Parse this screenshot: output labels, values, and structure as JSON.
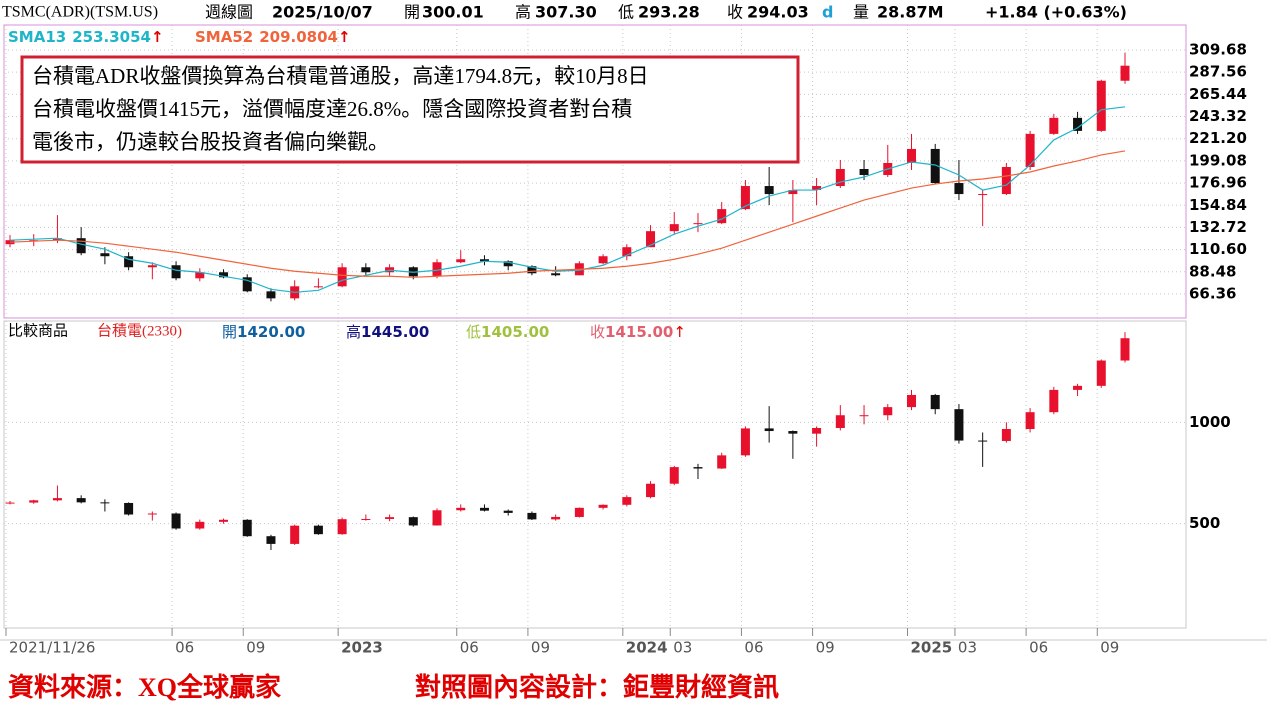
{
  "header": {
    "symbol": "TSMC(ADR)(TSM.US)",
    "period": "週線圖",
    "date": "2025/10/07",
    "open_label": "開",
    "open": "300.01",
    "high_label": "高",
    "high": "307.30",
    "low_label": "低",
    "low": "293.28",
    "close_label": "收",
    "close": "294.03",
    "flag": "d",
    "volume_label": "量",
    "volume": "28.87M",
    "change": "+1.84 (+0.63%)"
  },
  "annotation": [
    "台積電ADR收盤價換算為台積電普通股，高達1794.8元，較10月8日",
    "台積電收盤價1415元，溢價幅度達26.8%。隱含國際投資者對台積",
    "電後市，仍遠較台股投資者偏向樂觀。"
  ],
  "footer": {
    "source": "資料來源：XQ全球贏家",
    "design": "對照圖內容設計：鉅豐財經資訊"
  },
  "chart_data": [
    {
      "type": "candlestick",
      "up_color": "#e8112d",
      "down_color": "#111111",
      "open": [
        116,
        120,
        120,
        122,
        107,
        104,
        93,
        95,
        82,
        88,
        83,
        69,
        62,
        74,
        74,
        93,
        88,
        93,
        84,
        98,
        101,
        99,
        94,
        87,
        85,
        97,
        104,
        113,
        129,
        136,
        137,
        151,
        174,
        166,
        170,
        174,
        191,
        185,
        197,
        211,
        177,
        166,
        166,
        193,
        226,
        242,
        229,
        279
      ],
      "high": [
        125,
        126,
        145,
        133,
        113,
        108,
        98,
        99,
        92,
        91,
        86,
        72,
        80,
        82,
        97,
        97,
        96,
        94,
        101,
        110,
        105,
        100,
        95,
        94,
        99,
        106,
        116,
        135,
        148,
        147,
        158,
        180,
        193,
        180,
        182,
        200,
        200,
        215,
        226,
        216,
        200,
        170,
        197,
        229,
        246,
        248,
        280,
        307
      ],
      "low": [
        113,
        114,
        117,
        105,
        96,
        90,
        81,
        80,
        79,
        82,
        68,
        59,
        60,
        72,
        73,
        85,
        84,
        81,
        82,
        97,
        95,
        90,
        85,
        84,
        85,
        96,
        100,
        113,
        126,
        128,
        136,
        150,
        155,
        138,
        155,
        172,
        180,
        183,
        190,
        176,
        160,
        134,
        165,
        190,
        225,
        226,
        228,
        276
      ],
      "close": [
        120,
        120,
        122,
        107,
        104,
        93,
        95,
        82,
        88,
        83,
        69,
        62,
        74,
        74,
        93,
        88,
        93,
        84,
        98,
        101,
        99,
        94,
        87,
        85,
        97,
        104,
        113,
        129,
        136,
        137,
        151,
        174,
        166,
        170,
        174,
        191,
        185,
        197,
        211,
        177,
        166,
        166,
        193,
        226,
        242,
        229,
        279,
        294
      ],
      "lines": [
        {
          "name": "SMA13",
          "value": 253.3054,
          "trend": "↑",
          "color": "#1fb5c9",
          "values": [
            120,
            121,
            122,
            116,
            111,
            101,
            97,
            90,
            88,
            84,
            80,
            71,
            68,
            70,
            80,
            85,
            90,
            88,
            90,
            94,
            99,
            98,
            93,
            89,
            90,
            95,
            105,
            115,
            126,
            134,
            141,
            154,
            164,
            170,
            170,
            178,
            183,
            191,
            198,
            195,
            185,
            170,
            175,
            195,
            220,
            232,
            250,
            253
          ]
        },
        {
          "name": "SMA52",
          "value": 209.0804,
          "trend": "↑",
          "color": "#f0643c",
          "values": [
            118,
            119,
            120,
            119,
            117,
            114,
            111,
            108,
            104,
            100,
            96,
            92,
            89,
            87,
            85,
            84,
            84,
            83,
            84,
            85,
            86,
            87,
            89,
            90,
            91,
            92,
            94,
            97,
            101,
            106,
            112,
            120,
            128,
            136,
            144,
            152,
            160,
            166,
            172,
            176,
            179,
            181,
            184,
            188,
            194,
            199,
            205,
            209
          ]
        }
      ],
      "ylim": [
        42.4,
        334.6
      ],
      "yticks": [
        309.68,
        287.56,
        265.44,
        243.32,
        {
          "value": 221.2,
          "label": "221.20"
        },
        199.08,
        176.96,
        154.84,
        132.72,
        {
          "value": 110.6,
          "label": "110.60"
        },
        88.48,
        66.36
      ]
    },
    {
      "type": "candlestick",
      "up_color": "#e8112d",
      "down_color": "#111111",
      "compare_label": "比較商品",
      "name": "台積電(2330)",
      "quote": {
        "open_label": "開",
        "open": "1420.00",
        "high_label": "高",
        "high": "1445.00",
        "low_label": "低",
        "low": "1405.00",
        "close_label": "收",
        "close": "1415.00",
        "trend": "↑"
      },
      "categories": [
        "2021/11/26",
        null,
        null,
        null,
        null,
        null,
        null,
        "06",
        null,
        null,
        "09",
        null,
        null,
        null,
        "2023",
        null,
        null,
        null,
        null,
        "06",
        null,
        null,
        "09",
        null,
        null,
        null,
        "2024",
        null,
        "03",
        null,
        null,
        "06",
        null,
        null,
        "09",
        null,
        null,
        null,
        "2025",
        null,
        "03",
        null,
        null,
        "06",
        null,
        null,
        "09",
        null
      ],
      "open": [
        600,
        604,
        615,
        626,
        605,
        602,
        545,
        550,
        476,
        509,
        519,
        438,
        400,
        490,
        448,
        522,
        523,
        532,
        491,
        566,
        578,
        564,
        553,
        521,
        533,
        578,
        593,
        631,
        697,
        779,
        772,
        837,
        970,
        957,
        944,
        972,
        1035,
        1035,
        1075,
        1135,
        1065,
        910,
        908,
        967,
        1050,
        1160,
        1180,
        1305
      ],
      "high": [
        612,
        618,
        688,
        640,
        620,
        605,
        560,
        555,
        520,
        525,
        522,
        445,
        495,
        495,
        530,
        545,
        545,
        535,
        575,
        595,
        595,
        570,
        560,
        545,
        580,
        595,
        640,
        710,
        785,
        795,
        850,
        980,
        1080,
        960,
        980,
        1085,
        1085,
        1090,
        1160,
        1140,
        1090,
        950,
        1000,
        1070,
        1175,
        1190,
        1310,
        1445
      ],
      "low": [
        595,
        598,
        610,
        600,
        560,
        540,
        515,
        470,
        470,
        500,
        435,
        370,
        395,
        445,
        445,
        515,
        512,
        485,
        490,
        560,
        560,
        540,
        518,
        515,
        530,
        570,
        585,
        625,
        690,
        720,
        770,
        830,
        900,
        820,
        880,
        960,
        990,
        1010,
        1060,
        1040,
        895,
        780,
        900,
        950,
        1040,
        1130,
        1170,
        1295
      ],
      "close": [
        604,
        615,
        626,
        605,
        602,
        545,
        550,
        476,
        509,
        519,
        438,
        400,
        490,
        448,
        522,
        523,
        532,
        491,
        566,
        578,
        564,
        553,
        521,
        533,
        578,
        593,
        631,
        697,
        779,
        772,
        837,
        970,
        957,
        944,
        972,
        1035,
        1035,
        1075,
        1135,
        1065,
        910,
        908,
        967,
        1050,
        1160,
        1180,
        1305,
        1415
      ],
      "ylim": [
        -15,
        1500
      ],
      "yticks": [
        500,
        1000
      ]
    }
  ]
}
